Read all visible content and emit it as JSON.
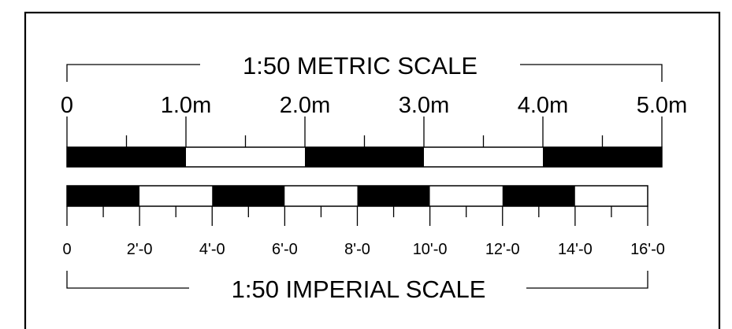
{
  "metric": {
    "title": "1:50 METRIC SCALE",
    "labels": [
      "0",
      "1.0m",
      "2.0m",
      "3.0m",
      "4.0m",
      "5.0m"
    ],
    "range": [
      0,
      5
    ],
    "unit": "m",
    "segment_pattern": [
      "black",
      "white",
      "black",
      "white",
      "black"
    ]
  },
  "imperial": {
    "title": "1:50 IMPERIAL SCALE",
    "labels": [
      "0",
      "2'-0",
      "4'-0",
      "6'-0",
      "8'-0",
      "10'-0",
      "12'-0",
      "14'-0",
      "16'-0"
    ],
    "range": [
      0,
      16
    ],
    "unit": "ft",
    "segment_pattern": [
      "black",
      "white",
      "black",
      "white",
      "black",
      "white",
      "black",
      "white"
    ]
  }
}
